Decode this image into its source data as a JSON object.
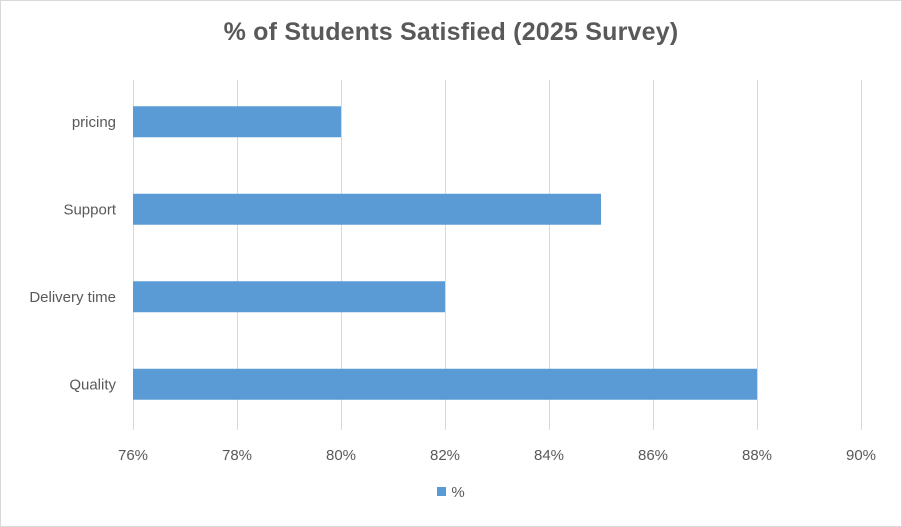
{
  "chart_data": {
    "type": "bar",
    "orientation": "horizontal",
    "title": "% of Students Satisfied (2025 Survey)",
    "categories": [
      "pricing",
      "Support",
      "Delivery time",
      "Quality"
    ],
    "series": [
      {
        "name": "%",
        "values": [
          0.8,
          0.85,
          0.82,
          0.88
        ],
        "color": "#5b9bd5"
      }
    ],
    "xlim": [
      0.76,
      0.9
    ],
    "x_ticks": [
      0.76,
      0.78,
      0.8,
      0.82,
      0.84,
      0.86,
      0.88,
      0.9
    ],
    "x_tick_labels": [
      "76%",
      "78%",
      "80%",
      "82%",
      "84%",
      "86%",
      "88%",
      "90%"
    ],
    "grid": true,
    "legend_position": "bottom"
  }
}
